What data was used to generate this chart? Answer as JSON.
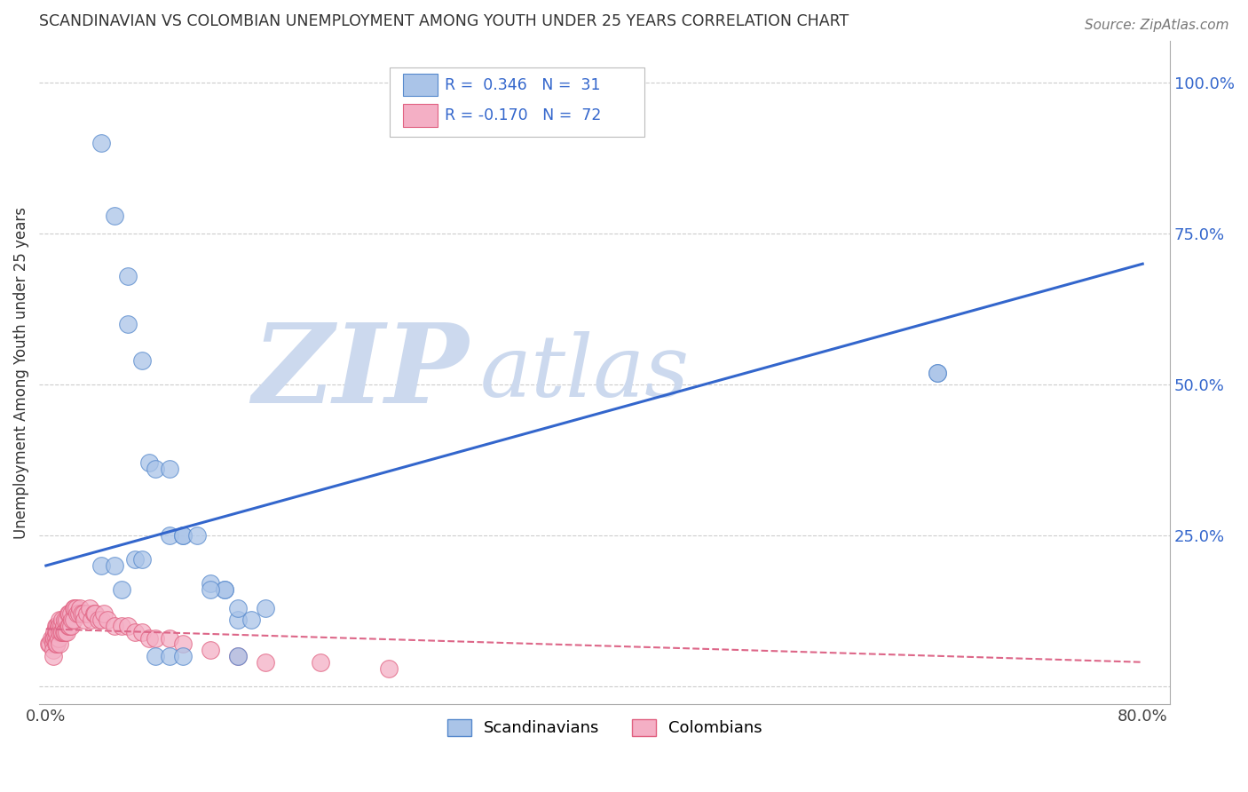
{
  "title": "SCANDINAVIAN VS COLOMBIAN UNEMPLOYMENT AMONG YOUTH UNDER 25 YEARS CORRELATION CHART",
  "source": "Source: ZipAtlas.com",
  "ylabel": "Unemployment Among Youth under 25 years",
  "xlim": [
    -0.005,
    0.82
  ],
  "ylim": [
    -0.03,
    1.07
  ],
  "ytick_positions": [
    0.0,
    0.25,
    0.5,
    0.75,
    1.0
  ],
  "ytick_right_labels": [
    "",
    "25.0%",
    "50.0%",
    "75.0%",
    "100.0%"
  ],
  "grid_color": "#cccccc",
  "background": "#ffffff",
  "watermark_zip": "ZIP",
  "watermark_atlas": "atlas",
  "watermark_color": "#ccd9ee",
  "scand_R": 0.346,
  "scand_N": 31,
  "colom_R": -0.17,
  "colom_N": 72,
  "scand_color": "#aac4e8",
  "colom_color": "#f4afc5",
  "scand_edge_color": "#5588cc",
  "colom_edge_color": "#e06080",
  "scand_line_color": "#3366cc",
  "colom_line_color": "#dd6688",
  "scand_x": [
    0.04,
    0.05,
    0.06,
    0.06,
    0.07,
    0.075,
    0.08,
    0.09,
    0.09,
    0.1,
    0.1,
    0.11,
    0.12,
    0.13,
    0.13,
    0.14,
    0.14,
    0.15,
    0.16,
    0.04,
    0.05,
    0.055,
    0.065,
    0.07,
    0.08,
    0.09,
    0.1,
    0.12,
    0.14,
    0.65,
    0.65
  ],
  "scand_y": [
    0.9,
    0.78,
    0.68,
    0.6,
    0.54,
    0.37,
    0.36,
    0.36,
    0.25,
    0.25,
    0.25,
    0.25,
    0.17,
    0.16,
    0.16,
    0.11,
    0.05,
    0.11,
    0.13,
    0.2,
    0.2,
    0.16,
    0.21,
    0.21,
    0.05,
    0.05,
    0.05,
    0.16,
    0.13,
    0.52,
    0.52
  ],
  "colom_x": [
    0.002,
    0.003,
    0.004,
    0.005,
    0.005,
    0.005,
    0.005,
    0.006,
    0.006,
    0.007,
    0.007,
    0.007,
    0.007,
    0.008,
    0.008,
    0.008,
    0.009,
    0.009,
    0.01,
    0.01,
    0.01,
    0.01,
    0.011,
    0.011,
    0.012,
    0.012,
    0.013,
    0.013,
    0.014,
    0.014,
    0.015,
    0.015,
    0.016,
    0.016,
    0.017,
    0.017,
    0.018,
    0.018,
    0.019,
    0.02,
    0.02,
    0.021,
    0.022,
    0.023,
    0.024,
    0.025,
    0.026,
    0.027,
    0.028,
    0.03,
    0.032,
    0.033,
    0.035,
    0.036,
    0.038,
    0.04,
    0.042,
    0.045,
    0.05,
    0.055,
    0.06,
    0.065,
    0.07,
    0.075,
    0.08,
    0.09,
    0.1,
    0.12,
    0.14,
    0.16,
    0.2,
    0.25
  ],
  "colom_y": [
    0.07,
    0.07,
    0.08,
    0.08,
    0.07,
    0.06,
    0.05,
    0.09,
    0.08,
    0.1,
    0.09,
    0.08,
    0.07,
    0.1,
    0.09,
    0.07,
    0.1,
    0.08,
    0.11,
    0.1,
    0.09,
    0.07,
    0.1,
    0.09,
    0.11,
    0.09,
    0.1,
    0.09,
    0.11,
    0.09,
    0.11,
    0.09,
    0.12,
    0.1,
    0.12,
    0.1,
    0.12,
    0.1,
    0.11,
    0.13,
    0.11,
    0.13,
    0.13,
    0.12,
    0.12,
    0.13,
    0.12,
    0.12,
    0.11,
    0.12,
    0.13,
    0.11,
    0.12,
    0.12,
    0.11,
    0.11,
    0.12,
    0.11,
    0.1,
    0.1,
    0.1,
    0.09,
    0.09,
    0.08,
    0.08,
    0.08,
    0.07,
    0.06,
    0.05,
    0.04,
    0.04,
    0.03
  ],
  "blue_line_x": [
    0.0,
    0.8
  ],
  "blue_line_y": [
    0.2,
    0.7
  ],
  "pink_line_x": [
    0.0,
    0.8
  ],
  "pink_line_y": [
    0.095,
    0.04
  ]
}
